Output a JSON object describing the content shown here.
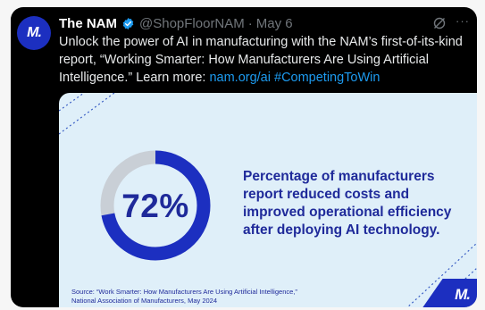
{
  "tweet": {
    "author_name": "The NAM",
    "handle": "@ShopFloorNAM",
    "separator": "·",
    "date": "May 6",
    "avatar_text": "M.",
    "text_main": "Unlock the power of AI in manufacturing with the NAM’s first-of-its-kind report, “Working Smarter: How Manufacturers Are Using Artificial Intelligence.” Learn more: ",
    "link_url": "nam.org/ai",
    "hashtag": "#CompetingToWin",
    "more_label": "···"
  },
  "media": {
    "percent_value": 72,
    "percent_label": "72%",
    "statement": "Percentage of manufacturers report reduced costs and improved operational efficiency after deploying AI technology.",
    "source_line1": "Source: “Work Smarter: How Manufacturers Are Using Artificial Intelligence,”",
    "source_line2": "National Association of Manufacturers, May 2024",
    "logo_text": "M."
  },
  "colors": {
    "brand_blue": "#1c2fc0",
    "text_navy": "#1f2a9a",
    "link_blue": "#1d9bf0",
    "ring_gray": "#c9cfd6",
    "media_bg": "#dfeff9"
  },
  "icons": {
    "verified": "verified-check-badge-icon",
    "grok": "grok-slash-icon",
    "more": "more-options-icon"
  }
}
